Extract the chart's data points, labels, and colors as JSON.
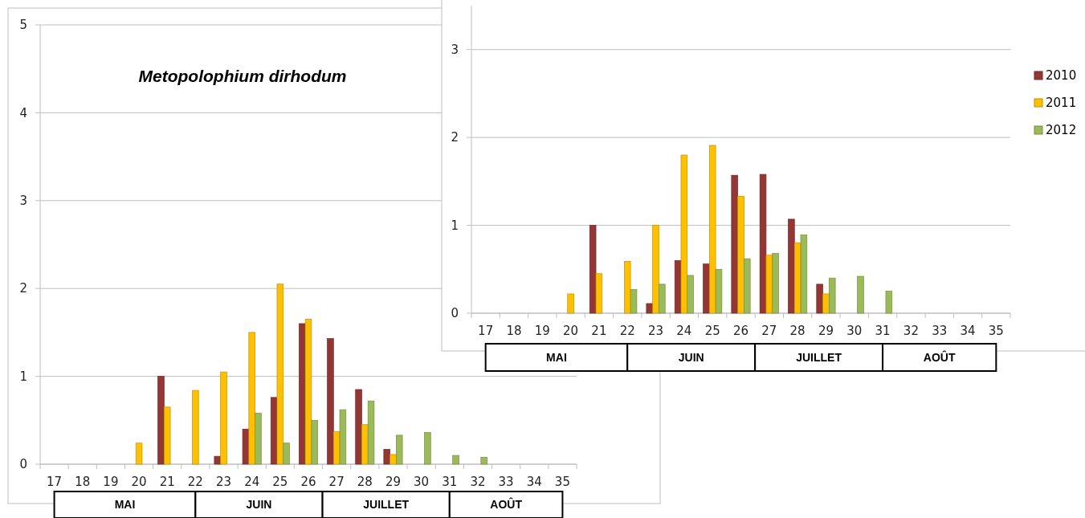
{
  "chart_data": [
    {
      "type": "bar",
      "title": "Metopolophium dirhodum",
      "categories": [
        "17",
        "18",
        "19",
        "20",
        "21",
        "22",
        "23",
        "24",
        "25",
        "26",
        "27",
        "28",
        "29",
        "30",
        "31",
        "32",
        "33",
        "34",
        "35"
      ],
      "series": [
        {
          "color": "#943634",
          "values": [
            0,
            0,
            0,
            0,
            1.0,
            0,
            0.09,
            0.4,
            0.76,
            1.6,
            1.43,
            0.85,
            0.17,
            0,
            0,
            0,
            0,
            0,
            0
          ]
        },
        {
          "color": "#ffc000",
          "values": [
            0,
            0,
            0,
            0.24,
            0.65,
            0.84,
            1.05,
            1.5,
            2.05,
            1.65,
            0.37,
            0.45,
            0.11,
            0,
            0,
            0,
            0,
            0,
            0
          ]
        },
        {
          "color": "#9bbb59",
          "values": [
            0,
            0,
            0,
            0,
            0,
            0,
            0,
            0.58,
            0.24,
            0.5,
            0.62,
            0.72,
            0.33,
            0.36,
            0.1,
            0.08,
            0,
            0,
            0
          ]
        }
      ],
      "ylim": [
        0,
        5
      ],
      "yticks": [
        0,
        1,
        2,
        3,
        4,
        5
      ],
      "grid": "y",
      "legend": false,
      "annotations": [
        "MAI",
        "JUIN",
        "JUILLET",
        "AOÛT"
      ]
    },
    {
      "type": "bar",
      "categories": [
        "17",
        "18",
        "19",
        "20",
        "21",
        "22",
        "23",
        "24",
        "25",
        "26",
        "27",
        "28",
        "29",
        "30",
        "31",
        "32",
        "33",
        "34",
        "35"
      ],
      "series": [
        {
          "name": "2010",
          "color": "#943634",
          "values": [
            0,
            0,
            0,
            0,
            1.0,
            0,
            0.11,
            0.6,
            0.56,
            1.57,
            1.58,
            1.07,
            0.33,
            0,
            0,
            0,
            0,
            0,
            0
          ]
        },
        {
          "name": "2011",
          "color": "#ffc000",
          "values": [
            0,
            0,
            0,
            0.22,
            0.45,
            0.59,
            1.0,
            1.8,
            1.91,
            1.33,
            0.66,
            0.8,
            0.22,
            0,
            0,
            0,
            0,
            0,
            0
          ]
        },
        {
          "name": "2012",
          "color": "#9bbb59",
          "values": [
            0,
            0,
            0,
            0,
            0,
            0.27,
            0.33,
            0.43,
            0.5,
            0.62,
            0.68,
            0.89,
            0.4,
            0.42,
            0.25,
            0,
            0,
            0,
            0
          ]
        }
      ],
      "ylim": [
        0,
        3.5
      ],
      "yticks": [
        0,
        1,
        2,
        3
      ],
      "grid": "y",
      "legend": "right",
      "annotations": [
        "MAI",
        "JUIN",
        "JUILLET",
        "AOÛT"
      ]
    }
  ]
}
